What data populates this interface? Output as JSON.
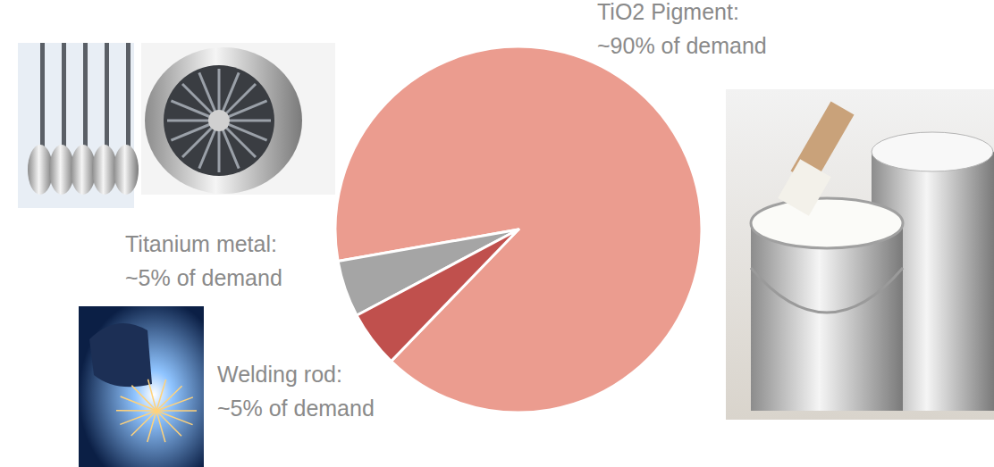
{
  "chart_data": {
    "type": "pie",
    "categories": [
      "TiO2 Pigment:",
      "Titanium metal:",
      "Welding rod:"
    ],
    "values": [
      90,
      5,
      5
    ],
    "value_labels": [
      "~90% of demand",
      "~5% of demand",
      "~5% of demand"
    ],
    "colors": [
      "#eb9c8f",
      "#a5a5a5",
      "#c0504d"
    ],
    "data_labels": true
  }
}
